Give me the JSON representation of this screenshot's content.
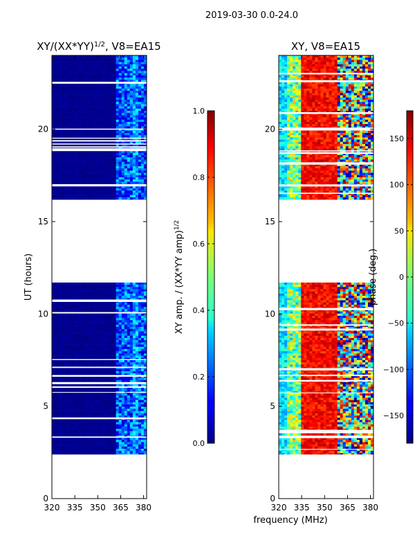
{
  "chart_data": {
    "type": "heatmap",
    "suptitle": "2019-03-30 0.0-24.0",
    "xlabel": "frequency (MHz)",
    "panels": [
      {
        "title_plain": "XY/(XX*YY)",
        "title_sup": "1/2",
        "title_suffix": ", V8=EA15",
        "ylabel": "UT (hours)",
        "xlim": [
          320,
          382
        ],
        "ylim": [
          0,
          24
        ],
        "xticks": [
          "320",
          "335",
          "350",
          "365",
          "380"
        ],
        "yticks": [
          "0",
          "5",
          "10",
          "15",
          "20"
        ],
        "data_ut_ranges": [
          [
            2.4,
            11.7
          ],
          [
            16.2,
            24.0
          ]
        ],
        "colorbar": {
          "label_main": "XY amp. / (XX*YY amp)",
          "label_sup": "1/2",
          "range": [
            0.0,
            1.0
          ],
          "ticks": [
            "0.0",
            "0.2",
            "0.4",
            "0.6",
            "0.8",
            "1.0"
          ]
        }
      },
      {
        "title": "XY, V8=EA15",
        "xlim": [
          320,
          382
        ],
        "ylim": [
          0,
          24
        ],
        "xticks": [
          "320",
          "335",
          "350",
          "365",
          "380"
        ],
        "yticks": [
          "0",
          "5",
          "10",
          "15",
          "20"
        ],
        "data_ut_ranges": [
          [
            2.4,
            11.7
          ],
          [
            16.2,
            24.0
          ]
        ],
        "colorbar": {
          "label": "phase (deg.)",
          "range": [
            -180,
            180
          ],
          "ticks": [
            "−150",
            "−100",
            "−50",
            "0",
            "50",
            "100",
            "150"
          ]
        }
      }
    ]
  }
}
